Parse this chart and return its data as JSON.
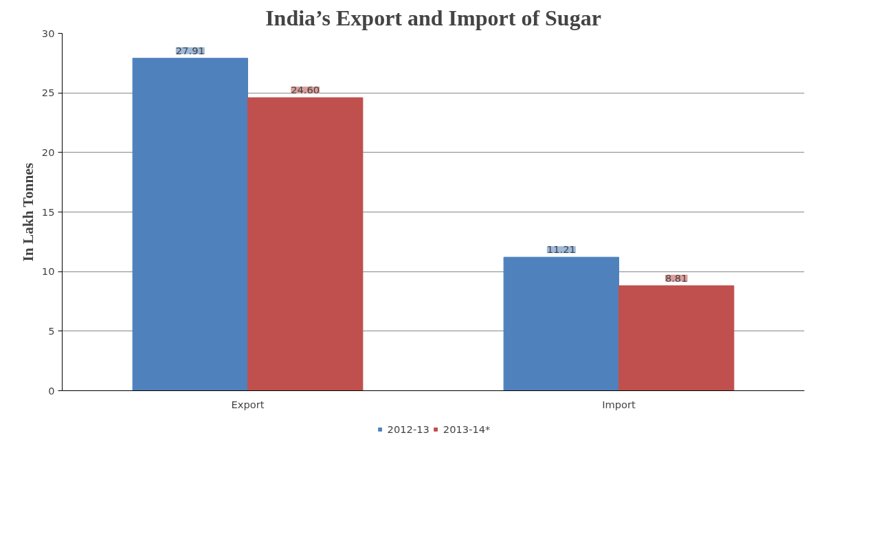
{
  "chart_data": {
    "type": "bar",
    "title": "India’s Export and Import of Sugar",
    "ylabel": "In Lakh Tonnes",
    "categories": [
      "Export",
      "Import"
    ],
    "series": [
      {
        "name": "2012-13",
        "color": "#4f81bd",
        "values": [
          27.91,
          11.21
        ],
        "value_labels": [
          "27.91",
          "11.21"
        ]
      },
      {
        "name": "2013-14*",
        "color": "#c0504d",
        "values": [
          24.6,
          8.81
        ],
        "value_labels": [
          "24.60",
          "8.81"
        ]
      }
    ],
    "ylim": [
      0,
      30
    ],
    "yticks": [
      0,
      5,
      10,
      15,
      20,
      25,
      30
    ],
    "grid": "y",
    "legend": "bottom"
  }
}
